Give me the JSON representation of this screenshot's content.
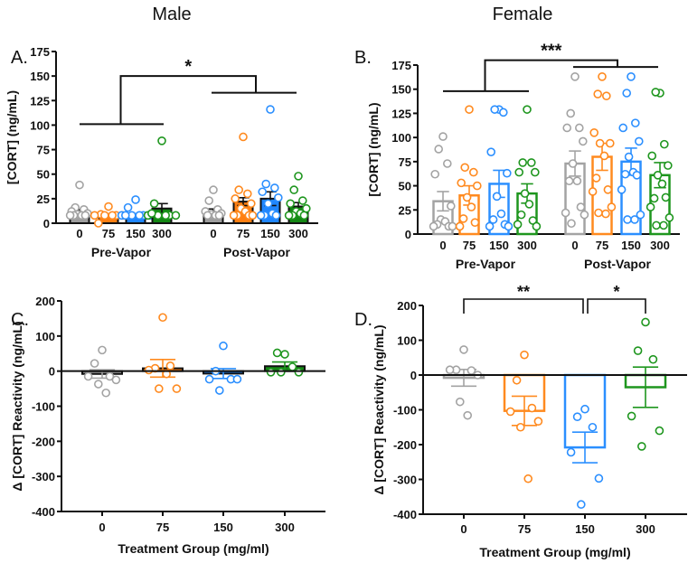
{
  "colors": {
    "gray": "#a3a3a3",
    "orange": "#ff8a1f",
    "blue": "#2b8fff",
    "green": "#1e961e",
    "gray_fill": "#9e9e9e",
    "orange_fill": "#ff7f11",
    "blue_fill": "#1f86ff",
    "green_fill": "#148714"
  },
  "column_titles": [
    "Male",
    "Female"
  ],
  "chart_data": [
    {
      "panel": "A.",
      "type": "bar",
      "ylabel": "[CORT] (ng/mL)",
      "ylim": [
        0,
        175
      ],
      "yticks": [
        "0",
        "25",
        "50",
        "75",
        "100",
        "125",
        "150",
        "175"
      ],
      "bar_style": "filled",
      "groups": [
        "Pre-Vapor",
        "Post-Vapor"
      ],
      "categories": [
        "0",
        "75",
        "150",
        "300"
      ],
      "means": [
        [
          12,
          8,
          8,
          15
        ],
        [
          12,
          22,
          25,
          17
        ]
      ],
      "sem": [
        [
          2,
          1,
          1.5,
          5
        ],
        [
          2.5,
          4,
          7,
          4
        ]
      ],
      "points": [
        [
          [
            39,
            16,
            14,
            12,
            10,
            9,
            8,
            8,
            8,
            8
          ],
          [
            17,
            9,
            8,
            8,
            8,
            8,
            8,
            0
          ],
          [
            24,
            16,
            8,
            8,
            8,
            8,
            8,
            8
          ],
          [
            84,
            20,
            8,
            8,
            8,
            8,
            8,
            10
          ]
        ],
        [
          [
            34,
            23,
            14,
            12,
            10,
            9,
            8,
            8,
            8
          ],
          [
            88,
            34,
            30,
            25,
            20,
            15,
            12,
            8,
            8,
            8,
            8
          ],
          [
            116,
            40,
            36,
            32,
            26,
            20,
            10,
            8,
            8,
            8
          ],
          [
            48,
            34,
            23,
            20,
            15,
            12,
            10,
            8,
            8,
            8
          ]
        ]
      ],
      "significance": "*"
    },
    {
      "panel": "B.",
      "type": "bar",
      "ylabel": "[CORT] (ng/mL)",
      "ylim": [
        0,
        175
      ],
      "yticks": [
        "0",
        "25",
        "50",
        "75",
        "100",
        "125",
        "150",
        "175"
      ],
      "bar_style": "hollow",
      "groups": [
        "Pre-Vapor",
        "Post-Vapor"
      ],
      "categories": [
        "0",
        "75",
        "150",
        "300"
      ],
      "means": [
        [
          34,
          40,
          52,
          42
        ],
        [
          73,
          80,
          75,
          61
        ]
      ],
      "sem": [
        [
          10,
          10,
          14,
          10
        ],
        [
          13,
          14,
          14,
          13
        ]
      ],
      "points": [
        [
          [
            101,
            88,
            73,
            62,
            29,
            15,
            13,
            10,
            8,
            8,
            8
          ],
          [
            129,
            69,
            64,
            53,
            50,
            38,
            28,
            16,
            12,
            8
          ],
          [
            129,
            129,
            126,
            85,
            63,
            39,
            21,
            15,
            10,
            8,
            8
          ],
          [
            129,
            74,
            74,
            64,
            64,
            42,
            31,
            20,
            14,
            10,
            8
          ]
        ],
        [
          [
            163,
            125,
            110,
            110,
            96,
            73,
            55,
            55,
            28,
            22,
            20,
            11
          ],
          [
            163,
            145,
            143,
            105,
            94,
            94,
            81,
            58,
            46,
            44,
            28,
            22,
            21
          ],
          [
            163,
            146,
            115,
            110,
            96,
            80,
            64,
            62,
            61,
            46,
            20,
            15,
            15
          ],
          [
            146,
            147,
            93,
            81,
            71,
            61,
            52,
            37,
            38,
            28,
            17,
            9,
            9
          ]
        ]
      ],
      "significance": "***"
    },
    {
      "panel": "C.",
      "type": "bar",
      "ylabel": "Δ [CORT] Reactivity (ng/mL)",
      "xlabel": "Treatment Group (mg/ml)",
      "ylim": [
        -400,
        200
      ],
      "yticks": [
        "200",
        "100",
        "0",
        "-100",
        "-200",
        "-300",
        "-400"
      ],
      "bar_style": "filled",
      "categories": [
        "0",
        "75",
        "150",
        "300"
      ],
      "means": [
        -8,
        8,
        -7,
        14
      ],
      "sem": [
        12,
        25,
        14,
        12
      ],
      "points": [
        [
          60,
          22,
          -15,
          -15,
          -25,
          -37,
          -62
        ],
        [
          153,
          8,
          15,
          3,
          -50,
          -50,
          -8
        ],
        [
          72,
          0,
          -23,
          -23,
          -23,
          -55
        ],
        [
          48,
          52,
          12,
          -3,
          -3,
          -3
        ]
      ]
    },
    {
      "panel": "D.",
      "type": "bar",
      "ylabel": "Δ [CORT] Reactivity (ng/mL)",
      "xlabel": "Treatment Group (mg/ml)",
      "ylim": [
        -400,
        200
      ],
      "yticks": [
        "200",
        "100",
        "0",
        "-100",
        "-200",
        "-300",
        "-400"
      ],
      "bar_style": "hollow",
      "categories": [
        "0",
        "75",
        "150",
        "300"
      ],
      "means": [
        -8,
        -103,
        -208,
        -35
      ],
      "sem": [
        24,
        42,
        44,
        58
      ],
      "points": [
        [
          73,
          15,
          13,
          15,
          0,
          -77,
          -116
        ],
        [
          58,
          -15,
          -95,
          -105,
          -133,
          -150,
          -298
        ],
        [
          -98,
          -120,
          -150,
          -222,
          -297,
          -372
        ],
        [
          152,
          70,
          45,
          -118,
          -160,
          -205
        ]
      ],
      "comparisons": [
        {
          "from": "0",
          "to": "150",
          "label": "**"
        },
        {
          "from": "150",
          "to": "300",
          "label": "*"
        }
      ]
    }
  ]
}
